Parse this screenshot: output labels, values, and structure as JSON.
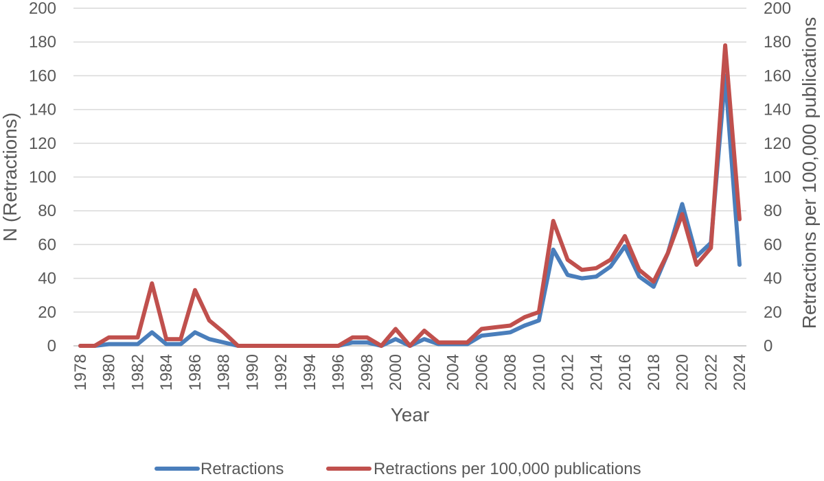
{
  "chart_data": {
    "type": "line",
    "xlabel": "Year",
    "ylabel": "N (Retractions)",
    "y2label": "Retractions per 100,000 publications",
    "ylim": [
      0,
      200
    ],
    "y2lim": [
      0,
      200
    ],
    "yticks": [
      "0",
      "20",
      "40",
      "60",
      "80",
      "100",
      "120",
      "140",
      "160",
      "180",
      "200"
    ],
    "y2ticks": [
      "0",
      "20",
      "40",
      "60",
      "80",
      "100",
      "120",
      "140",
      "160",
      "180",
      "200"
    ],
    "x": [
      1978,
      1979,
      1980,
      1981,
      1982,
      1983,
      1984,
      1985,
      1986,
      1987,
      1988,
      1989,
      1990,
      1991,
      1992,
      1993,
      1994,
      1995,
      1996,
      1997,
      1998,
      1999,
      2000,
      2001,
      2002,
      2003,
      2004,
      2005,
      2006,
      2007,
      2008,
      2009,
      2010,
      2011,
      2012,
      2013,
      2014,
      2015,
      2016,
      2017,
      2018,
      2019,
      2020,
      2021,
      2022,
      2023,
      2024
    ],
    "xticks": [
      "1978",
      "1980",
      "1982",
      "1984",
      "1986",
      "1988",
      "1990",
      "1992",
      "1994",
      "1996",
      "1998",
      "2000",
      "2002",
      "2004",
      "2006",
      "2008",
      "2010",
      "2012",
      "2014",
      "2016",
      "2018",
      "2020",
      "2022",
      "2024"
    ],
    "grid": true,
    "legend_position": "bottom",
    "series": [
      {
        "name": "Retractions",
        "axis": "left",
        "color": "#4A7EBB",
        "values": [
          0,
          0,
          1,
          1,
          1,
          8,
          1,
          1,
          8,
          4,
          2,
          0,
          0,
          0,
          0,
          0,
          0,
          0,
          0,
          2,
          2,
          0,
          4,
          0,
          4,
          1,
          1,
          1,
          6,
          7,
          8,
          12,
          15,
          57,
          42,
          40,
          41,
          47,
          59,
          41,
          35,
          55,
          84,
          53,
          61,
          160,
          48
        ]
      },
      {
        "name": "Retractions per 100,000 publications",
        "axis": "right",
        "color": "#C0504D",
        "values": [
          0,
          0,
          5,
          5,
          5,
          37,
          4,
          4,
          33,
          15,
          8,
          0,
          0,
          0,
          0,
          0,
          0,
          0,
          0,
          5,
          5,
          0,
          10,
          0,
          9,
          2,
          2,
          2,
          10,
          11,
          12,
          17,
          20,
          74,
          51,
          45,
          46,
          51,
          65,
          45,
          38,
          55,
          78,
          48,
          58,
          178,
          75
        ]
      }
    ]
  }
}
